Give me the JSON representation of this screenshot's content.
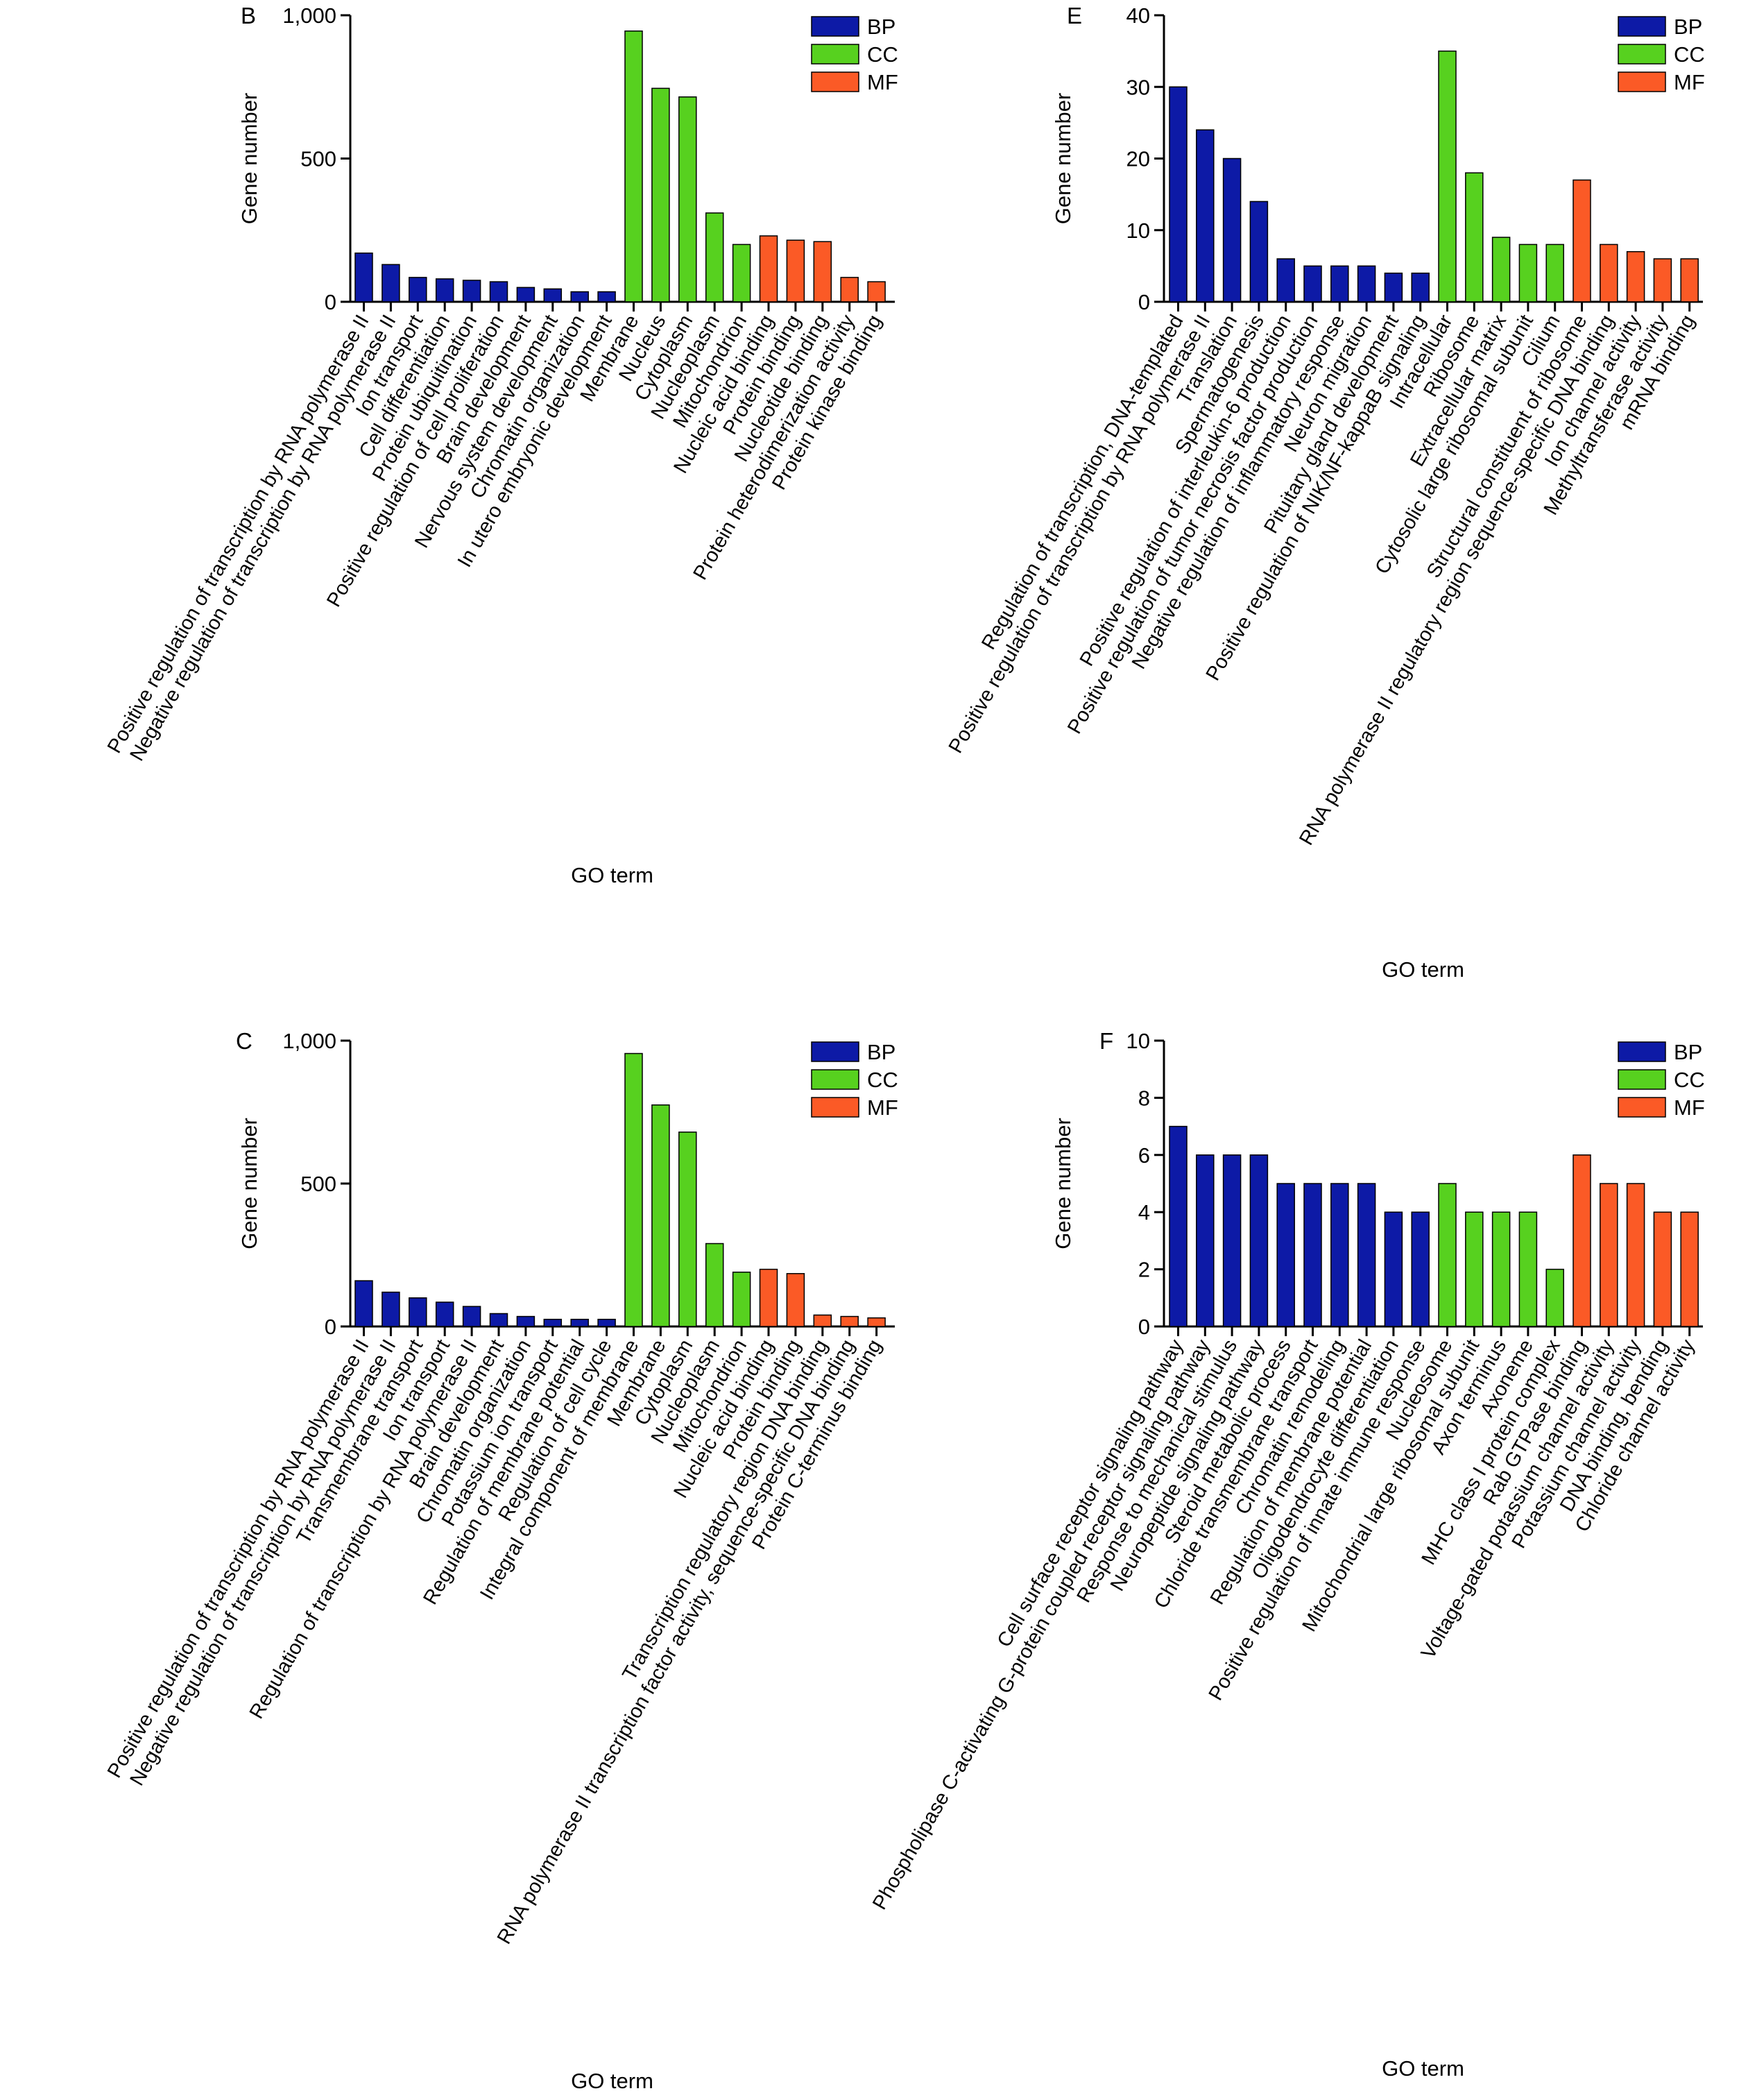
{
  "colors": {
    "BP": "#0d1aa6",
    "CC": "#57d11f",
    "MF": "#fb5a26"
  },
  "chart_data": [
    {
      "panel": "B",
      "type": "bar",
      "xlabel": "GO term",
      "ylabel": "Gene number",
      "ylim": [
        0,
        1000
      ],
      "yticks": [
        0,
        500,
        1000
      ],
      "ytick_labels": [
        "0",
        "500",
        "1,000"
      ],
      "legend": [
        "BP",
        "CC",
        "MF"
      ],
      "legend_position": "top-right",
      "categories": [
        "Positive regulation of transcription by RNA polymerase II",
        "Negative regulation of transcription by RNA polymerase II",
        "Ion transport",
        "Cell differentiation",
        "Protein ubiquitination",
        "Positive regulation of cell proliferation",
        "Brain development",
        "Nervous system development",
        "Chromatin organization",
        "In utero embryonic development",
        "Membrane",
        "Nucleus",
        "Cytoplasm",
        "Nucleoplasm",
        "Mitochondrion",
        "Nucleic acid binding",
        "Protein binding",
        "Nucleotide binding",
        "Protein heterodimerization activity",
        "Protein kinase binding"
      ],
      "groups": [
        "BP",
        "BP",
        "BP",
        "BP",
        "BP",
        "BP",
        "BP",
        "BP",
        "BP",
        "BP",
        "CC",
        "CC",
        "CC",
        "CC",
        "CC",
        "MF",
        "MF",
        "MF",
        "MF",
        "MF"
      ],
      "values": [
        170,
        130,
        85,
        80,
        75,
        70,
        50,
        45,
        35,
        35,
        945,
        745,
        715,
        310,
        200,
        230,
        215,
        210,
        85,
        70
      ]
    },
    {
      "panel": "E",
      "type": "bar",
      "xlabel": "GO term",
      "ylabel": "Gene number",
      "ylim": [
        0,
        40
      ],
      "yticks": [
        0,
        10,
        20,
        30,
        40
      ],
      "ytick_labels": [
        "0",
        "10",
        "20",
        "30",
        "40"
      ],
      "legend": [
        "BP",
        "CC",
        "MF"
      ],
      "legend_position": "top-right",
      "categories": [
        "Regulation of transcription, DNA-templated",
        "Positive regulation of transcription by RNA polymerase II",
        "Translation",
        "Spermatogenesis",
        "Positive regulation of interleukin-6 production",
        "Positive regulation of tumor necrosis factor production",
        "Negative regulation of inflammatory response",
        "Neuron migration",
        "Pituitary gland development",
        "Positive regulation of NIK/NF-kappaB signaling",
        "Intracellular",
        "Ribosome",
        "Extracellular matrix",
        "Cytosolic large ribosomal subunit",
        "Cilium",
        "Structural constituent of ribosome",
        "RNA polymerase II regulatory region sequence-specific DNA binding",
        "Ion channel activity",
        "Methyltransferase activity",
        "mRNA binding"
      ],
      "groups": [
        "BP",
        "BP",
        "BP",
        "BP",
        "BP",
        "BP",
        "BP",
        "BP",
        "BP",
        "BP",
        "CC",
        "CC",
        "CC",
        "CC",
        "CC",
        "MF",
        "MF",
        "MF",
        "MF",
        "MF"
      ],
      "values": [
        30,
        24,
        20,
        14,
        6,
        5,
        5,
        5,
        4,
        4,
        35,
        18,
        9,
        8,
        8,
        17,
        8,
        7,
        6,
        6
      ]
    },
    {
      "panel": "C",
      "type": "bar",
      "xlabel": "GO term",
      "ylabel": "Gene number",
      "ylim": [
        0,
        1000
      ],
      "yticks": [
        0,
        500,
        1000
      ],
      "ytick_labels": [
        "0",
        "500",
        "1,000"
      ],
      "legend": [
        "BP",
        "CC",
        "MF"
      ],
      "legend_position": "top-right",
      "categories": [
        "Positive regulation of transcription by RNA polymerase II",
        "Negative regulation of transcription by RNA polymerase II",
        "Transmembrane transport",
        "Ion transport",
        "Regulation of transcription by RNA polymerase II",
        "Brain development",
        "Chromatin organization",
        "Potassium ion transport",
        "Regulation of membrane potential",
        "Regulation of cell cycle",
        "Integral component of membrane",
        "Membrane",
        "Cytoplasm",
        "Nucleoplasm",
        "Mitochondrion",
        "Nucleic acid binding",
        "Protein binding",
        "Transcription regulatory region DNA binding",
        "RNA polymerase II transcription factor activity, sequence-specific DNA binding",
        "Protein C-terminus binding"
      ],
      "groups": [
        "BP",
        "BP",
        "BP",
        "BP",
        "BP",
        "BP",
        "BP",
        "BP",
        "BP",
        "BP",
        "CC",
        "CC",
        "CC",
        "CC",
        "CC",
        "MF",
        "MF",
        "MF",
        "MF",
        "MF"
      ],
      "values": [
        160,
        120,
        100,
        85,
        70,
        45,
        35,
        25,
        25,
        25,
        955,
        775,
        680,
        290,
        190,
        200,
        185,
        40,
        35,
        30
      ]
    },
    {
      "panel": "F",
      "type": "bar",
      "xlabel": "GO term",
      "ylabel": "Gene number",
      "ylim": [
        0,
        10
      ],
      "yticks": [
        0,
        2,
        4,
        6,
        8,
        10
      ],
      "ytick_labels": [
        "0",
        "2",
        "4",
        "6",
        "8",
        "10"
      ],
      "legend": [
        "BP",
        "CC",
        "MF"
      ],
      "legend_position": "top-right",
      "categories": [
        "Cell surface receptor signaling pathway",
        "Phospholipase C-activating G-protein coupled receptor signaling pathway",
        "Response to mechanical stimulus",
        "Neuropeptide signaling pathway",
        "Steroid metabolic process",
        "Chloride transmembrane transport",
        "Chromatin remodeling",
        "Regulation of membrane potential",
        "Oligodendrocyte differentiation",
        "Positive regulation of innate immune response",
        "Nucleosome",
        "Mitochondrial large ribosomal subunit",
        "Axon terminus",
        "Axoneme",
        "MHC class I protein complex",
        "Rab GTPase binding",
        "Voltage-gated potassium channel activity",
        "Potassium channel activity",
        "DNA binding, bending",
        "Chloride channel activity"
      ],
      "groups": [
        "BP",
        "BP",
        "BP",
        "BP",
        "BP",
        "BP",
        "BP",
        "BP",
        "BP",
        "BP",
        "CC",
        "CC",
        "CC",
        "CC",
        "CC",
        "MF",
        "MF",
        "MF",
        "MF",
        "MF"
      ],
      "values": [
        7,
        6,
        6,
        6,
        5,
        5,
        5,
        5,
        4,
        4,
        5,
        4,
        4,
        4,
        2,
        6,
        5,
        5,
        4,
        4
      ]
    }
  ]
}
